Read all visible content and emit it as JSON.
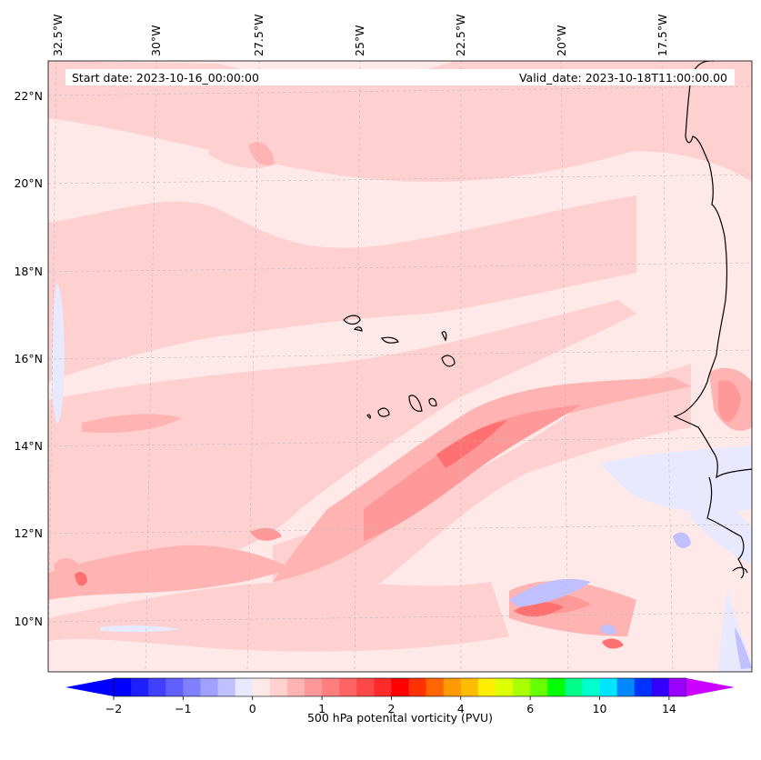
{
  "header": {
    "start_date": "Start date: 2023-10-16_00:00:00",
    "valid_date": "Valid_date: 2023-10-18T11:00:00.00"
  },
  "map": {
    "lon_labels": [
      "32.5°W",
      "30°W",
      "27.5°W",
      "25°W",
      "22.5°W",
      "20°W",
      "17.5°W"
    ],
    "lat_labels": [
      "22°N",
      "20°N",
      "18°N",
      "16°N",
      "14°N",
      "12°N",
      "10°N"
    ],
    "gridlines": true,
    "coastline_color": "#000000"
  },
  "colorbar": {
    "label": "500 hPa potenital vorticity (PVU)",
    "tick_labels": [
      "−2",
      "−1",
      "0",
      "1",
      "2",
      "4",
      "6",
      "10",
      "14"
    ],
    "extend": "both",
    "levels": [
      -2,
      -1.75,
      -1.5,
      -1.25,
      -1,
      -0.75,
      -0.5,
      -0.25,
      0,
      0.25,
      0.5,
      0.75,
      1,
      1.25,
      1.5,
      1.75,
      2,
      2.5,
      3,
      3.5,
      4,
      4.5,
      5,
      5.5,
      6,
      7,
      8,
      9,
      10,
      11,
      12,
      13,
      14
    ],
    "colors": [
      "#0000ff",
      "#2020ff",
      "#4040ff",
      "#6060ff",
      "#8080ff",
      "#a0a0ff",
      "#c0c0ff",
      "#e8e8ff",
      "#ffe8e8",
      "#ffd0d0",
      "#ffb3b3",
      "#ff9898",
      "#ff7f7f",
      "#ff6464",
      "#ff4848",
      "#ff2a2a",
      "#ff0000",
      "#ff3300",
      "#ff6600",
      "#ff9900",
      "#ffbb00",
      "#ffee00",
      "#ddff00",
      "#aaff00",
      "#66ff00",
      "#00ff00",
      "#00ff88",
      "#00ffcc",
      "#00e5ff",
      "#0088ff",
      "#0033ff",
      "#3300ff",
      "#9900ff"
    ],
    "extend_low_color": "#0000ff",
    "extend_high_color": "#cc00ff"
  }
}
